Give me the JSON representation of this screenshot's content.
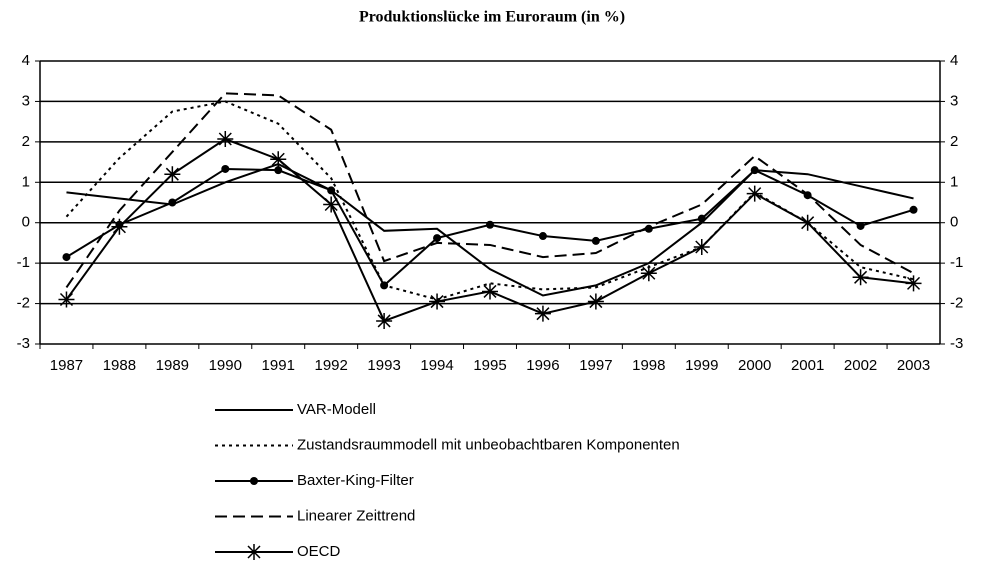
{
  "chart_data": {
    "type": "line",
    "title": "Produktionslücke im Euroraum (in %)",
    "categories": [
      "1987",
      "1988",
      "1989",
      "1990",
      "1991",
      "1992",
      "1993",
      "1994",
      "1995",
      "1996",
      "1997",
      "1998",
      "1999",
      "2000",
      "2001",
      "2002",
      "2003"
    ],
    "series": [
      {
        "name": "VAR-Modell",
        "color": "#000000",
        "dash": "solid",
        "marker": "none",
        "values": [
          0.75,
          0.6,
          0.45,
          1.0,
          1.45,
          0.8,
          -0.2,
          -0.15,
          -1.15,
          -1.8,
          -1.55,
          -1.0,
          0.0,
          1.3,
          1.2,
          0.9,
          0.6
        ]
      },
      {
        "name": "Zustandsraummodell mit unbeobachtbaren Komponenten",
        "color": "#000000",
        "dash": "dotted",
        "marker": "none",
        "values": [
          0.15,
          1.6,
          2.75,
          3.0,
          2.45,
          1.1,
          -1.55,
          -1.9,
          -1.5,
          -1.65,
          -1.6,
          -1.1,
          -0.6,
          0.75,
          0.0,
          -1.1,
          -1.4
        ]
      },
      {
        "name": "Baxter-King-Filter",
        "color": "#000000",
        "dash": "solid",
        "marker": "circle",
        "values": [
          -0.85,
          -0.05,
          0.5,
          1.33,
          1.3,
          0.8,
          -1.55,
          -0.38,
          -0.05,
          -0.33,
          -0.45,
          -0.15,
          0.1,
          1.3,
          0.68,
          -0.08,
          0.32
        ]
      },
      {
        "name": "Linearer Zeittrend",
        "color": "#000000",
        "dash": "dashed",
        "marker": "none",
        "values": [
          -1.6,
          0.3,
          1.75,
          3.2,
          3.15,
          2.3,
          -0.95,
          -0.5,
          -0.55,
          -0.85,
          -0.75,
          -0.1,
          0.45,
          1.65,
          0.7,
          -0.55,
          -1.25
        ]
      },
      {
        "name": "OECD",
        "color": "#000000",
        "dash": "solid",
        "marker": "star",
        "values": [
          -1.9,
          -0.1,
          1.2,
          2.07,
          1.57,
          0.45,
          -2.43,
          -1.95,
          -1.7,
          -2.25,
          -1.95,
          -1.25,
          -0.6,
          0.72,
          0.0,
          -1.35,
          -1.5
        ]
      }
    ],
    "ylim": [
      -3,
      4
    ],
    "yticks": [
      -3,
      -2,
      -1,
      0,
      1,
      2,
      3,
      4
    ],
    "y2lim": [
      -3,
      4
    ],
    "y2ticks": [
      -3,
      -2,
      -1,
      0,
      1,
      2,
      3,
      4
    ],
    "grid": true,
    "legend": "bottom"
  }
}
